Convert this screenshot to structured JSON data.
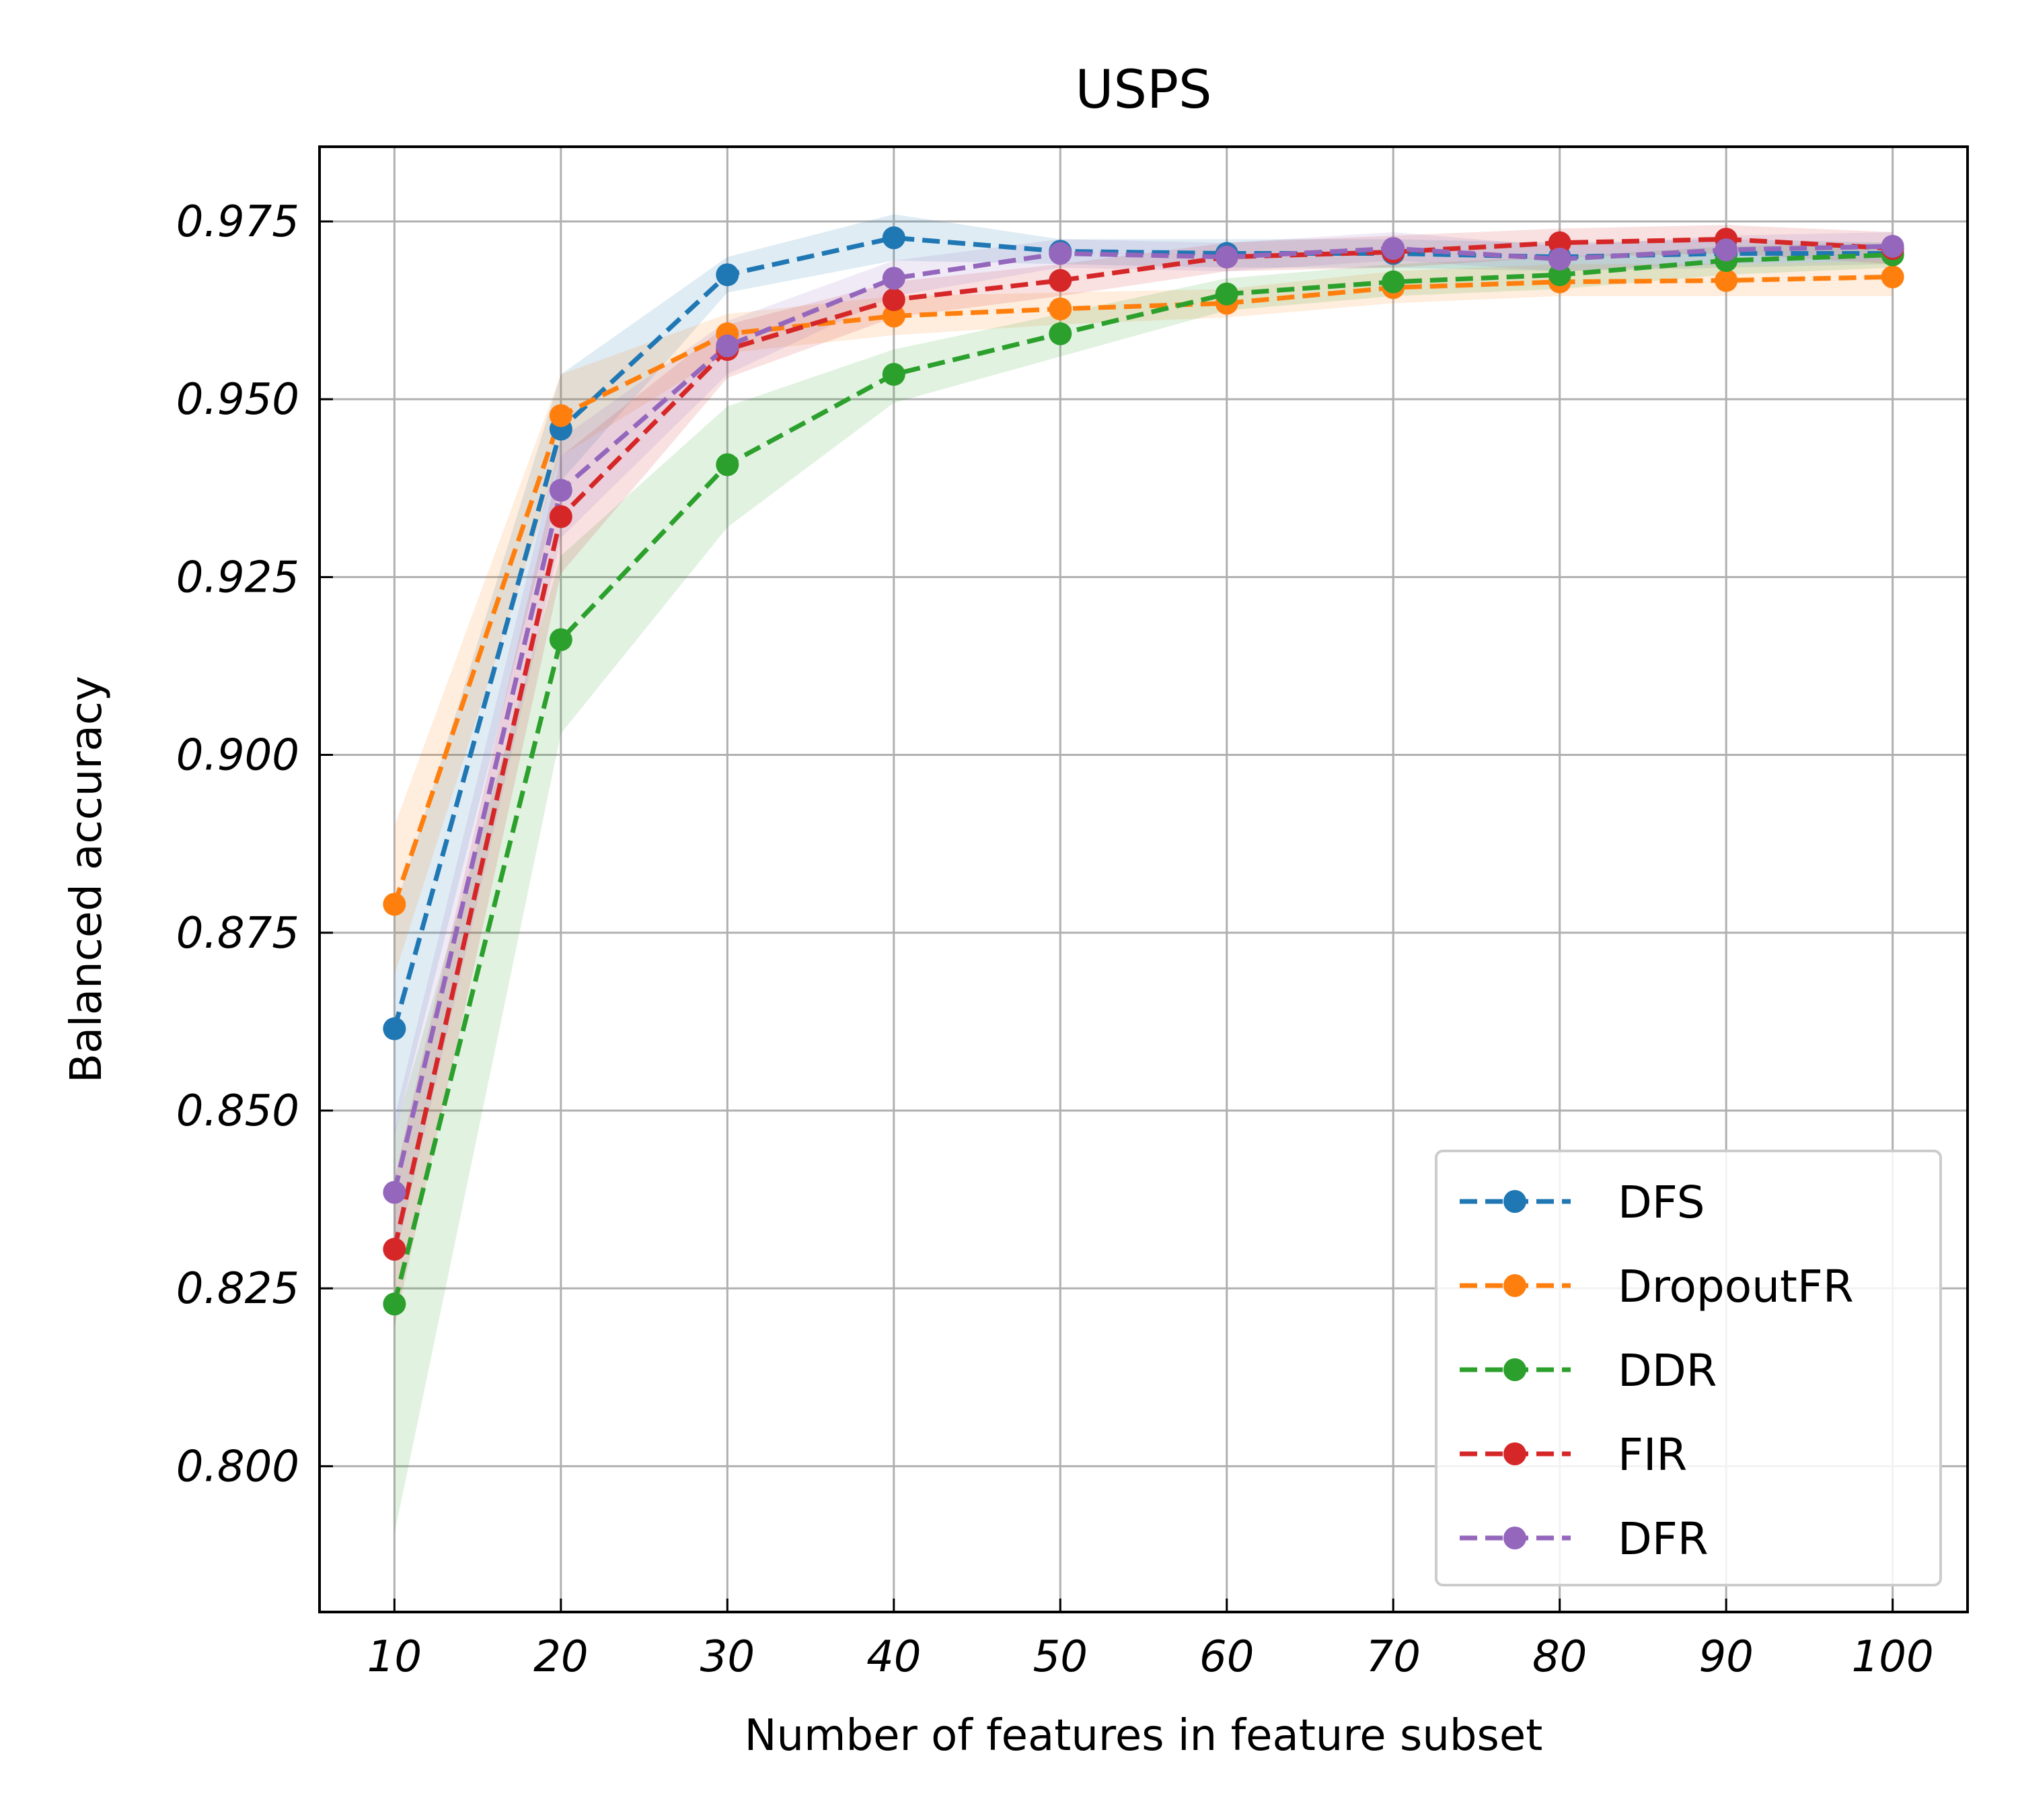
{
  "chart_data": {
    "type": "line",
    "title": "USPS",
    "xlabel": "Number of features in feature subset",
    "ylabel": "Balanced accuracy",
    "x": [
      10,
      20,
      30,
      40,
      50,
      60,
      70,
      80,
      90,
      100
    ],
    "xlim": [
      5.5,
      104.5
    ],
    "ylim": [
      0.7795,
      0.9855
    ],
    "yticks": [
      0.8,
      0.825,
      0.85,
      0.875,
      0.9,
      0.925,
      0.95,
      0.975
    ],
    "ytick_labels": [
      "0.800",
      "0.825",
      "0.850",
      "0.875",
      "0.900",
      "0.925",
      "0.950",
      "0.975"
    ],
    "xtick_labels": [
      "10",
      "20",
      "30",
      "40",
      "50",
      "60",
      "70",
      "80",
      "90",
      "100"
    ],
    "grid": true,
    "line_style": "dashed",
    "markers": "circle",
    "legend_position": "lower-right",
    "series": [
      {
        "name": "DFS",
        "color": "#1f77b4",
        "values": [
          0.8615,
          0.9458,
          0.9675,
          0.9727,
          0.9708,
          0.9705,
          0.9705,
          0.97,
          0.9705,
          0.9705
        ],
        "lower": [
          0.8465,
          0.9385,
          0.965,
          0.9695,
          0.969,
          0.9685,
          0.9685,
          0.968,
          0.9685,
          0.969
        ],
        "upper": [
          0.878,
          0.9535,
          0.97,
          0.976,
          0.9725,
          0.9725,
          0.9725,
          0.972,
          0.9725,
          0.972
        ]
      },
      {
        "name": "DropoutFR",
        "color": "#ff7f0e",
        "values": [
          0.879,
          0.9477,
          0.9592,
          0.9617,
          0.9627,
          0.9635,
          0.9657,
          0.9665,
          0.9667,
          0.9672
        ],
        "lower": [
          0.869,
          0.942,
          0.9565,
          0.959,
          0.9605,
          0.9615,
          0.9635,
          0.9645,
          0.9645,
          0.9645
        ],
        "upper": [
          0.89,
          0.9535,
          0.962,
          0.9645,
          0.965,
          0.9655,
          0.968,
          0.969,
          0.969,
          0.9695
        ]
      },
      {
        "name": "DDR",
        "color": "#2ca02c",
        "values": [
          0.8228,
          0.9162,
          0.9408,
          0.9535,
          0.9592,
          0.9648,
          0.9665,
          0.9675,
          0.9695,
          0.9703
        ],
        "lower": [
          0.7905,
          0.903,
          0.932,
          0.9495,
          0.956,
          0.9625,
          0.9645,
          0.9655,
          0.9675,
          0.9685
        ],
        "upper": [
          0.847,
          0.928,
          0.949,
          0.957,
          0.962,
          0.967,
          0.969,
          0.97,
          0.9715,
          0.972
        ]
      },
      {
        "name": "FIR",
        "color": "#d62728",
        "values": [
          0.8305,
          0.9335,
          0.957,
          0.964,
          0.9667,
          0.97,
          0.9707,
          0.972,
          0.9725,
          0.9712
        ],
        "lower": [
          0.8195,
          0.9255,
          0.953,
          0.9615,
          0.9645,
          0.968,
          0.9685,
          0.97,
          0.9705,
          0.969
        ],
        "upper": [
          0.8405,
          0.942,
          0.9605,
          0.9665,
          0.969,
          0.972,
          0.973,
          0.974,
          0.9745,
          0.9735
        ]
      },
      {
        "name": "DFR",
        "color": "#9467bd",
        "values": [
          0.8385,
          0.9372,
          0.9575,
          0.967,
          0.9705,
          0.97,
          0.9712,
          0.9697,
          0.971,
          0.9715
        ],
        "lower": [
          0.8285,
          0.9305,
          0.9535,
          0.9645,
          0.9685,
          0.968,
          0.9695,
          0.968,
          0.969,
          0.9695
        ],
        "upper": [
          0.849,
          0.9445,
          0.961,
          0.9695,
          0.9725,
          0.972,
          0.9735,
          0.9715,
          0.973,
          0.9735
        ]
      }
    ]
  }
}
